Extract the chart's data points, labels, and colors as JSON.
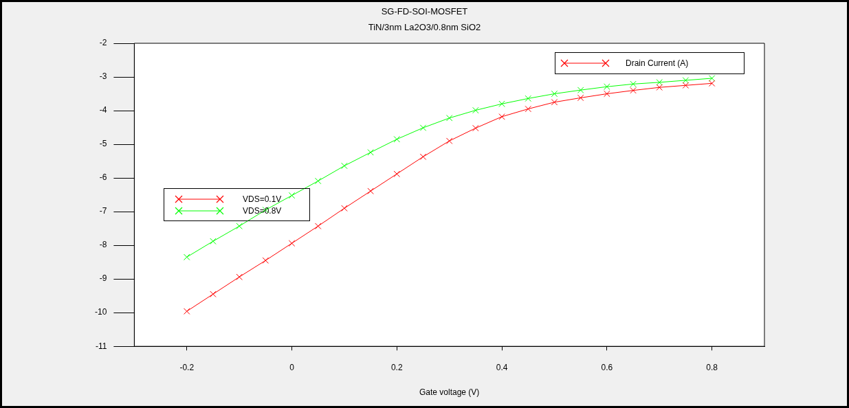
{
  "chart_data": {
    "type": "line",
    "title": "SG-FD-SOI-MOSFET",
    "subtitle": "TiN/3nm La2O3/0.8nm SiO2",
    "xlabel": "Gate voltage (V)",
    "ylabel": "Drain Current (A)",
    "x": [
      -0.2,
      -0.15,
      -0.1,
      -0.05,
      0,
      0.05,
      0.1,
      0.15,
      0.2,
      0.25,
      0.3,
      0.35,
      0.4,
      0.45,
      0.5,
      0.55,
      0.6,
      0.65,
      0.7,
      0.75,
      0.8
    ],
    "series": [
      {
        "name": "VDS=0.1V",
        "color": "#ff0000",
        "values": [
          -9.96,
          -9.45,
          -8.94,
          -8.45,
          -7.94,
          -7.43,
          -6.9,
          -6.39,
          -5.88,
          -5.37,
          -4.9,
          -4.52,
          -4.18,
          -3.95,
          -3.75,
          -3.62,
          -3.5,
          -3.4,
          -3.31,
          -3.25,
          -3.19
        ]
      },
      {
        "name": "VDS=0.8V",
        "color": "#00ff00",
        "values": [
          -8.35,
          -7.88,
          -7.43,
          -6.95,
          -6.52,
          -6.09,
          -5.64,
          -5.24,
          -4.85,
          -4.51,
          -4.22,
          -3.99,
          -3.8,
          -3.64,
          -3.5,
          -3.39,
          -3.29,
          -3.21,
          -3.16,
          -3.1,
          -3.04
        ]
      }
    ],
    "xlim": [
      -0.3,
      0.9
    ],
    "xticks": [
      -0.2,
      0,
      0.2,
      0.4,
      0.6,
      0.8
    ],
    "ylim": [
      -11,
      -2
    ],
    "yticks": [
      -11,
      -10,
      -9,
      -8,
      -7,
      -6,
      -5,
      -4,
      -3,
      -2
    ],
    "grid": false,
    "legend": "left",
    "marker": "cross",
    "line_style": "solid"
  }
}
